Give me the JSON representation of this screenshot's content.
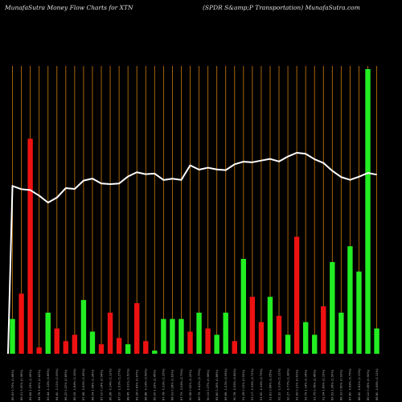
{
  "chart_data": {
    "type": "bar",
    "title_left": "MunafaSutra  Money Flow  Charts for XTN",
    "title_right": "(SPDR S&amp;P Transportation) MunafaSutra.com",
    "categories": [
      "Fri 17 Jan 2025",
      "Thu 16 Jan 2025",
      "Wed 15 Jan 2025",
      "Tue 14 Jan 2025",
      "Mon 13 Jan 2025",
      "Fri 10 Jan 2025",
      "Wed 08 Jan 2025",
      "Tue 07 Jan 2025",
      "Mon 06 Jan 2025",
      "Fri 03 Jan 2025",
      "Thu 02 Jan 2025",
      "Tue 31 Dec 2024",
      "Mon 30 Dec 2024",
      "Fri 27 Dec 2024",
      "Thu 26 Dec 2024",
      "Tue 24 Dec 2024",
      "Mon 23 Dec 2024",
      "Fri 20 Dec 2024",
      "Thu 19 Dec 2024",
      "Wed 18 Dec 2024",
      "Tue 17 Dec 2024",
      "Mon 16 Dec 2024",
      "Fri 13 Dec 2024",
      "Thu 12 Dec 2024",
      "Wed 11 Dec 2024",
      "Tue 10 Dec 2024",
      "Mon 09 Dec 2024",
      "Fri 06 Dec 2024",
      "Thu 05 Dec 2024",
      "Wed 04 Dec 2024",
      "Tue 03 Dec 2024",
      "Mon 02 Dec 2024",
      "Fri 29 Nov 2024",
      "Wed 27 Nov 2024",
      "Tue 26 Nov 2024",
      "Mon 25 Nov 2024",
      "Fri 22 Nov 2024",
      "Thu 21 Nov 2024",
      "Wed 20 Nov 2024",
      "Tue 19 Nov 2024",
      "Mon 18 Nov 2024",
      "Fri 15 Nov 2024"
    ],
    "tick_labels": [
      "86.63 0.79% (0.68%)",
      "86.01 0.20% (0.96%)",
      "85.84 1.25% (1.49%)",
      "84.78 1.60% (0.62%)",
      "83.44 -1.14% (0.86%)",
      "84.40 -2.11% (1.06%)",
      "86.22 0.20% (0.89%)",
      "86.05 -1.84% (1.16%)",
      "87.66 -0.43% (1.45%)",
      "88.04 1.08% (1.28%)",
      "87.10 0.14% (0.94%)",
      "86.98 -0.14% (1.12%)",
      "87.10 -1.53% (1.27%)",
      "88.45 -0.91% (1.50%)",
      "89.26 0.43% (0.87%)",
      "88.88 -0.14% (0.58%)",
      "89.00 1.39% (1.45%)",
      "87.78 -0.29% (1.35%)",
      "88.03 0.28% (1.63%)",
      "87.79 -3.08% (2.79%)",
      "90.58 0.92% (1.20%)",
      "89.75 -0.42% (0.79%)",
      "90.13 0.37% (0.56%)",
      "89.80 0.16% (0.86%)",
      "89.66 -1.23% (0.95%)",
      "90.78 -0.55% (0.84%)",
      "91.28 0.12% (0.53%)",
      "91.17 -0.36% (0.71%)",
      "91.50 -0.34% (0.75%)",
      "91.81 0.54% (1.05%)",
      "91.32 -1.03% (1.11%)",
      "92.27 -0.77% (1.38%)",
      "92.99 0.21% (0.61%)",
      "92.79 1.14% (1.34%)",
      "91.75 0.78% (1.46%)",
      "91.04 1.69% (2.19%)",
      "89.53 1.36% (1.50%)",
      "88.33 0.60% (0.93%)",
      "87.80 -0.68% (0.75%)",
      "88.40 -0.81% (1.13%)",
      "89.12 0.36% (0.90%)",
      "88.80 -0.46% (1.12%)"
    ],
    "volumes": [
      11,
      19,
      68,
      2,
      13,
      8,
      4,
      6,
      17,
      7,
      3,
      13,
      5,
      3,
      16,
      4,
      1,
      11,
      11,
      11,
      7,
      13,
      8,
      6,
      13,
      4,
      30,
      18,
      10,
      18,
      12,
      6,
      37,
      10,
      6,
      15,
      29,
      13,
      34,
      26,
      90,
      8
    ],
    "flow_direction": [
      "green",
      "red",
      "red",
      "red",
      "green",
      "red",
      "red",
      "red",
      "green",
      "green",
      "red",
      "red",
      "red",
      "green",
      "red",
      "red",
      "green",
      "green",
      "green",
      "green",
      "red",
      "green",
      "red",
      "green",
      "green",
      "red",
      "green",
      "red",
      "red",
      "green",
      "red",
      "green",
      "red",
      "green",
      "green",
      "red",
      "green",
      "green",
      "green",
      "green",
      "green",
      "green"
    ],
    "price_line": [
      86.63,
      86.01,
      85.84,
      84.78,
      83.44,
      84.4,
      86.22,
      86.05,
      87.66,
      88.04,
      87.1,
      86.98,
      87.1,
      88.45,
      89.26,
      88.88,
      89.0,
      87.78,
      88.03,
      87.79,
      90.58,
      89.75,
      90.13,
      89.8,
      89.66,
      90.78,
      91.28,
      91.17,
      91.5,
      91.81,
      91.32,
      92.27,
      92.99,
      92.79,
      91.75,
      91.04,
      89.53,
      88.33,
      87.8,
      88.4,
      89.12,
      88.8
    ],
    "colors": {
      "background": "#000000",
      "up": "#22ee22",
      "down": "#ee1111",
      "grid": "#b8700a",
      "line": "#ffffff",
      "text": "#e0e0e0"
    },
    "grid": true
  }
}
